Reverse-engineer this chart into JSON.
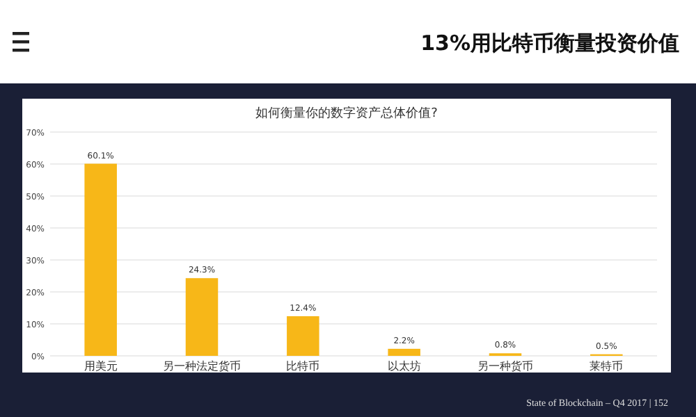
{
  "chart_data": {
    "type": "bar",
    "title": "如何衡量你的数字资产总体价值?",
    "subtitle": "13%用比特币衡量投资价值",
    "categories": [
      "用美元",
      "另一种法定货币",
      "比特币",
      "以太坊",
      "另一种货币",
      "莱特币"
    ],
    "values": [
      60.1,
      24.3,
      12.4,
      2.2,
      0.8,
      0.5
    ],
    "color": "#f7b718",
    "ylim": [
      0,
      70
    ],
    "yticks": [
      {
        "value": 0,
        "label": "0%"
      },
      {
        "value": 10,
        "label": "10%"
      },
      {
        "value": 20,
        "label": "20%"
      },
      {
        "value": 30,
        "label": "30%"
      },
      {
        "value": 40,
        "label": "40%"
      },
      {
        "value": 50,
        "label": "50%"
      },
      {
        "value": 60,
        "label": "60%"
      },
      {
        "value": 70,
        "label": "70%"
      }
    ],
    "grid": "y",
    "value_labels": [
      "60.1%",
      "24.3%",
      "12.4%",
      "2.2%",
      "0.8%",
      "0.5%"
    ],
    "annotations": [
      "State of Blockchain – Q4 2017  |  152"
    ]
  }
}
